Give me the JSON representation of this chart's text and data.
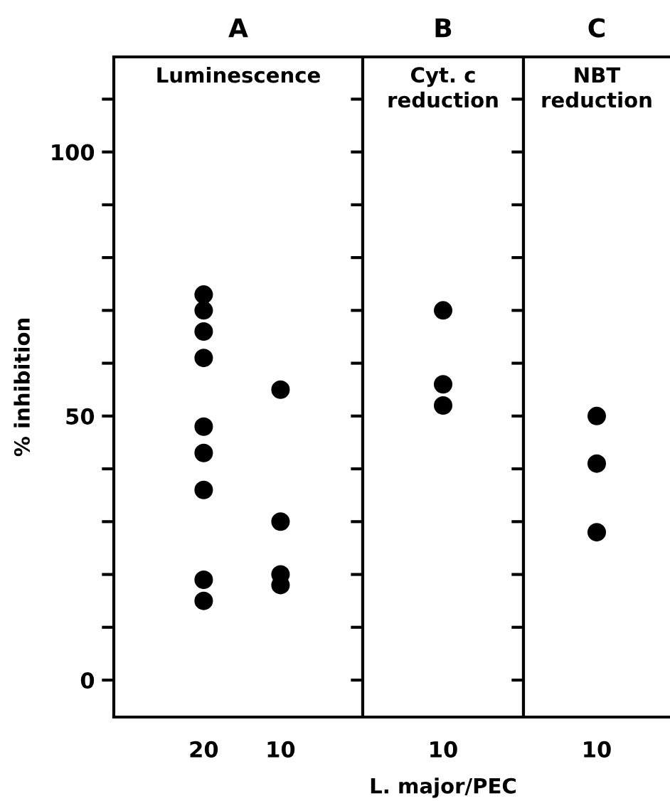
{
  "chart_data": [
    {
      "type": "scatter",
      "title": "A",
      "subtitle": "Luminescence",
      "ylabel": "% inhibition",
      "categories": [
        "20",
        "10"
      ],
      "series": [
        {
          "color": "#000000",
          "x": [
            "20",
            "20",
            "20",
            "20",
            "20",
            "20",
            "20",
            "20",
            "20",
            "10",
            "10",
            "10",
            "10"
          ],
          "values": [
            73,
            70,
            66,
            61,
            48,
            43,
            36,
            19,
            15,
            55,
            30,
            20,
            18
          ]
        }
      ],
      "ylim": [
        -7,
        118
      ],
      "yticks": [
        0,
        {
          "value": 10,
          "label": null
        },
        {
          "value": 20,
          "label": null
        },
        {
          "value": 30,
          "label": null
        },
        {
          "value": 40,
          "label": null
        },
        50,
        {
          "value": 60,
          "label": null
        },
        {
          "value": 70,
          "label": null
        },
        {
          "value": 80,
          "label": null
        },
        {
          "value": 90,
          "label": null
        },
        100,
        {
          "value": 110,
          "label": null
        }
      ],
      "marker": "circle",
      "grid": false
    },
    {
      "type": "scatter",
      "title": "B",
      "subtitle": "Cyt. c\nreduction",
      "xlabel": "L. major/PEC",
      "categories": [
        "10"
      ],
      "series": [
        {
          "color": "#000000",
          "x": [
            "10",
            "10",
            "10"
          ],
          "values": [
            70,
            56,
            52
          ]
        }
      ],
      "ylim": [
        -7,
        118
      ],
      "yticks": [
        0,
        {
          "value": 10,
          "label": null
        },
        {
          "value": 20,
          "label": null
        },
        {
          "value": 30,
          "label": null
        },
        {
          "value": 40,
          "label": null
        },
        50,
        {
          "value": 60,
          "label": null
        },
        {
          "value": 70,
          "label": null
        },
        {
          "value": 80,
          "label": null
        },
        {
          "value": 90,
          "label": null
        },
        100,
        {
          "value": 110,
          "label": null
        }
      ],
      "tick_labels": "x",
      "marker": "circle",
      "grid": false
    },
    {
      "type": "scatter",
      "title": "C",
      "subtitle": "NBT\nreduction",
      "categories": [
        "10"
      ],
      "series": [
        {
          "color": "#000000",
          "x": [
            "10",
            "10",
            "10"
          ],
          "values": [
            50,
            41,
            28
          ]
        }
      ],
      "ylim": [
        -7,
        118
      ],
      "yticks": [
        0,
        {
          "value": 10,
          "label": null
        },
        {
          "value": 20,
          "label": null
        },
        {
          "value": 30,
          "label": null
        },
        {
          "value": 40,
          "label": null
        },
        50,
        {
          "value": 60,
          "label": null
        },
        {
          "value": 70,
          "label": null
        },
        {
          "value": 80,
          "label": null
        },
        {
          "value": 90,
          "label": null
        },
        100,
        {
          "value": 110,
          "label": null
        }
      ],
      "tick_labels": "x",
      "marker": "circle",
      "grid": false
    }
  ]
}
